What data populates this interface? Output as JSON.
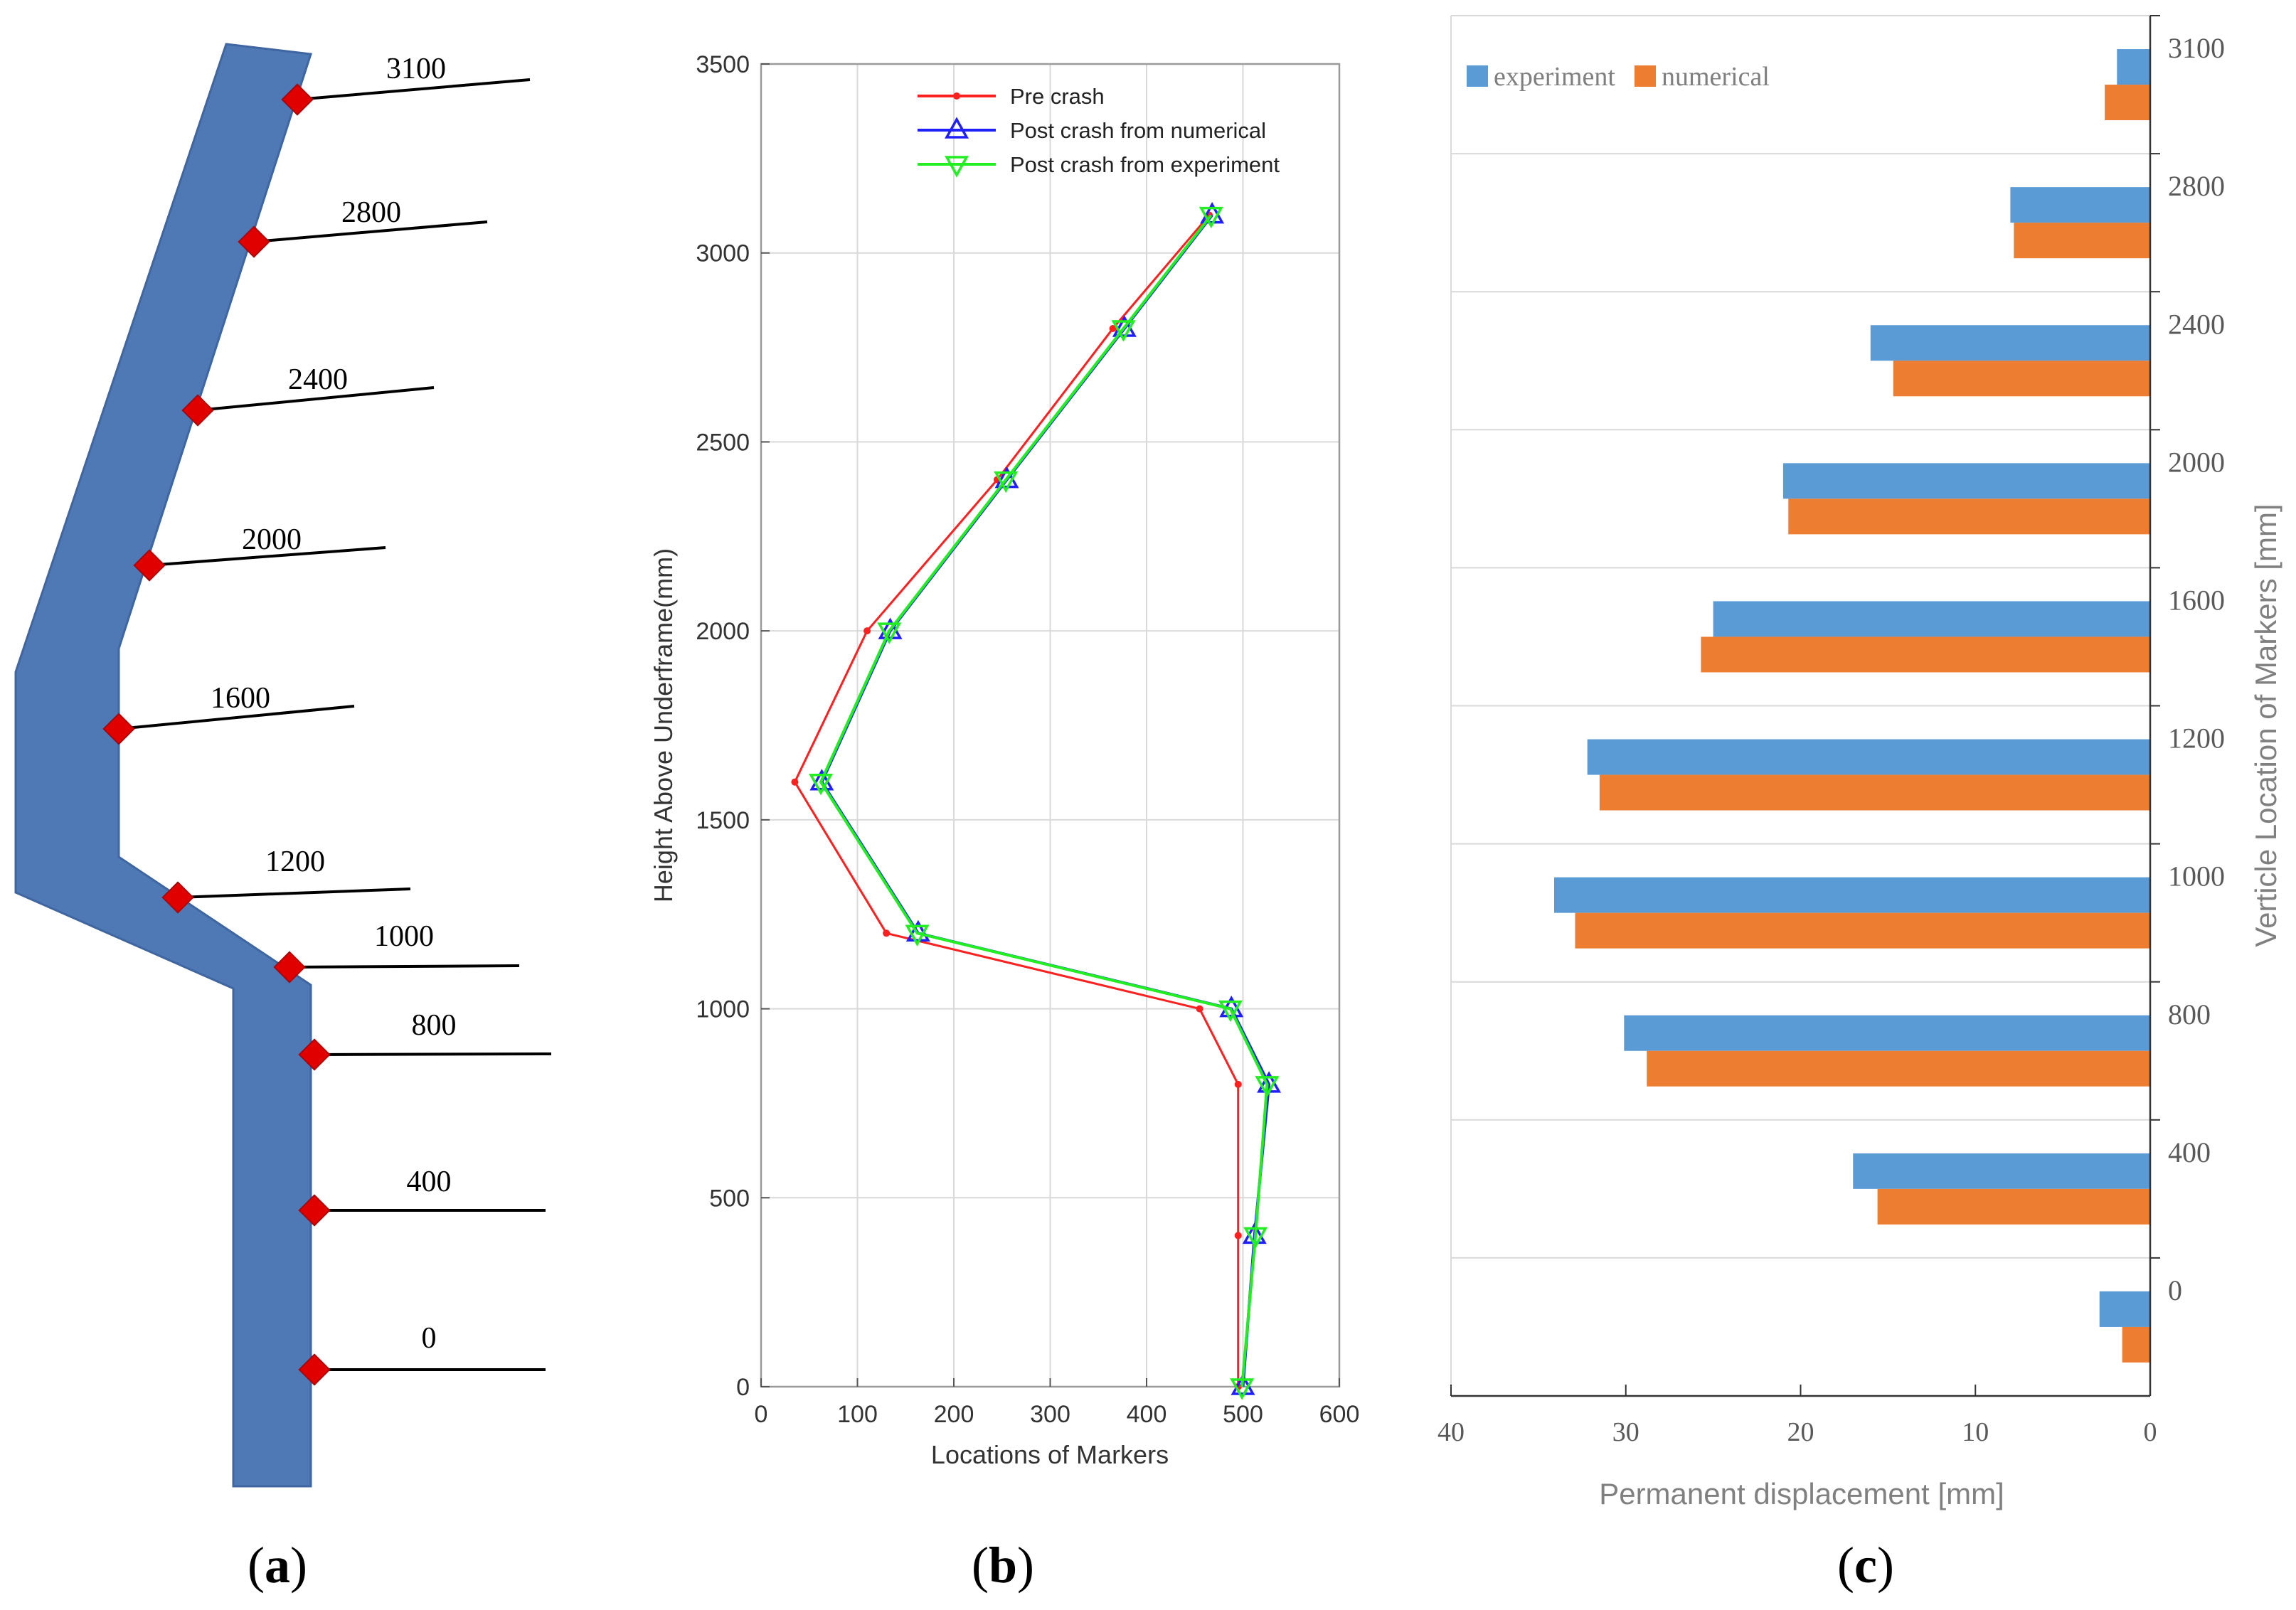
{
  "panel_labels": {
    "a": {
      "open": "(",
      "letter": "a",
      "close": ")"
    },
    "b": {
      "open": "(",
      "letter": "b",
      "close": ")"
    },
    "c": {
      "open": "(",
      "letter": "c",
      "close": ")"
    }
  },
  "colors": {
    "body": "#4f79b4",
    "marker": "#e00000",
    "pre": "#ff2020",
    "numerical_line": "#2020ff",
    "experiment_line": "#22ee22",
    "bar_experiment": "#5b9bd5",
    "bar_numerical": "#ed7d31",
    "grid": "#d9d9d9"
  },
  "chart_data": [
    {
      "type": "diagram",
      "title": "",
      "marker_labels": [
        "3100",
        "2800",
        "2400",
        "2000",
        "1600",
        "1200",
        "1000",
        "800",
        "400",
        "0"
      ]
    },
    {
      "type": "line",
      "title": "",
      "xlabel": "Locations of Markers",
      "ylabel": "Height Above Underframe(mm)",
      "xlim": [
        0,
        600
      ],
      "ylim": [
        0,
        3500
      ],
      "xticks": [
        0,
        100,
        200,
        300,
        400,
        500,
        600
      ],
      "yticks": [
        0,
        500,
        1000,
        1500,
        2000,
        2500,
        3000,
        3500
      ],
      "legend_position": "top-right",
      "series": [
        {
          "name": "Pre crash",
          "x": [
            495,
            495,
            495,
            455,
            130,
            35,
            110,
            245,
            365,
            465
          ],
          "y": [
            0,
            400,
            800,
            1000,
            1200,
            1600,
            2000,
            2400,
            2800,
            3100
          ]
        },
        {
          "name": "Post crash from numerical",
          "x": [
            500,
            512,
            527,
            488,
            163,
            63,
            134,
            255,
            377,
            468
          ],
          "y": [
            0,
            400,
            800,
            1000,
            1200,
            1600,
            2000,
            2400,
            2800,
            3100
          ]
        },
        {
          "name": "Post crash from experiment",
          "x": [
            499,
            513,
            525,
            487,
            162,
            62,
            133,
            254,
            376,
            467
          ],
          "y": [
            0,
            400,
            800,
            1000,
            1200,
            1600,
            2000,
            2400,
            2800,
            3100
          ]
        }
      ]
    },
    {
      "type": "bar",
      "orientation": "horizontal",
      "title": "",
      "xlabel": "Permanent displacement [mm]",
      "ylabel": "Verticle Location of Markers [mm]",
      "xlim": [
        40,
        0
      ],
      "xticks": [
        40,
        30,
        20,
        10,
        0
      ],
      "categories": [
        "3100",
        "2800",
        "2400",
        "2000",
        "1600",
        "1200",
        "1000",
        "800",
        "400",
        "0"
      ],
      "legend_position": "top-left",
      "series": [
        {
          "name": "experiment",
          "values": [
            1.9,
            8.0,
            16.0,
            21.0,
            25.0,
            32.2,
            34.1,
            30.1,
            17.0,
            2.9
          ]
        },
        {
          "name": "numerical",
          "values": [
            2.6,
            7.8,
            14.7,
            20.7,
            25.7,
            31.5,
            32.9,
            28.8,
            15.6,
            1.6
          ]
        }
      ]
    }
  ]
}
